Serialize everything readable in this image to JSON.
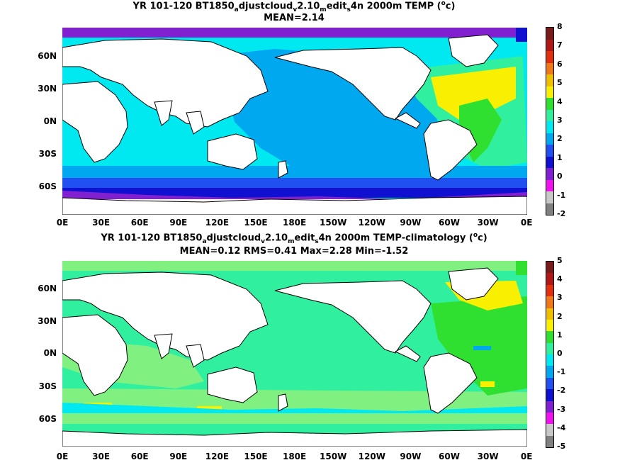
{
  "panels": [
    {
      "title_parts": [
        "YR 101-120 BT1850",
        "a",
        "djustcloud",
        "v",
        "2.10",
        "m",
        "edit",
        "s",
        "4n 2000m TEMP (",
        "o",
        "c)"
      ],
      "stats": "MEAN=2.14",
      "colorbar": [
        "8",
        "7",
        "6",
        "5",
        "4",
        "3",
        "2",
        "1",
        "0",
        "-1",
        "-2"
      ]
    },
    {
      "title_parts": [
        "YR 101-120 BT1850",
        "a",
        "djustcloud",
        "v",
        "2.10",
        "m",
        "edit",
        "s",
        "4n 2000m TEMP-climatology (",
        "o",
        "c)"
      ],
      "stats": "MEAN=0.12   RMS=0.41   Max=2.28   Min=-1.52",
      "colorbar": [
        "5",
        "4",
        "3",
        "2",
        "1",
        "0",
        "-1",
        "-2",
        "-3",
        "-4",
        "-5"
      ]
    }
  ],
  "lat_labels": [
    "60N",
    "30N",
    "0N",
    "30S",
    "60S"
  ],
  "lon_labels": [
    "0E",
    "30E",
    "60E",
    "90E",
    "120E",
    "150E",
    "180E",
    "150W",
    "120W",
    "90W",
    "60W",
    "30W",
    "0E"
  ],
  "colors": {
    "ocean_blue": "#00a8f0",
    "cyan": "#00e8f0",
    "aqua_green": "#30f0a0",
    "light_green": "#80f080",
    "green": "#30e030",
    "yellow": "#f8f000",
    "blue": "#2050f0",
    "dark_blue": "#1010d0",
    "purple": "#8020d0",
    "magenta": "#f010f0"
  },
  "colorbar_colors": [
    "#7a1a1a",
    "#b01818",
    "#e03010",
    "#f07818",
    "#f0c000",
    "#f8f000",
    "#30e030",
    "#30f0a0",
    "#00e8f0",
    "#00a8f0",
    "#2050f0",
    "#1010d0",
    "#8020d0",
    "#f010f0",
    "#c8c8c8",
    "#808080"
  ]
}
